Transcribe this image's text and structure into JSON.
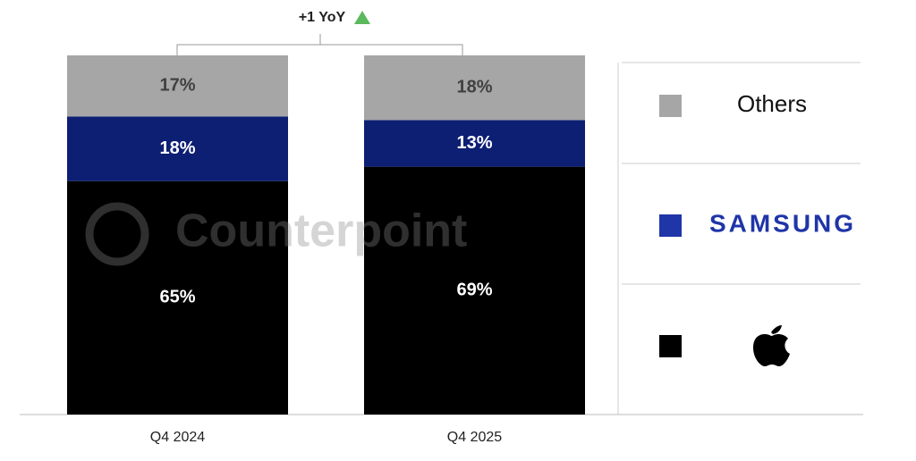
{
  "chart_data": {
    "type": "stacked_bar",
    "annotation": "+1 YoY",
    "watermark": "Counterpoint",
    "categories": [
      "Q4 2024",
      "Q4 2025"
    ],
    "ylim": [
      0,
      100
    ],
    "series": [
      {
        "color": "#000000",
        "label_color": "#ffffff",
        "values": [
          65,
          69
        ],
        "value_labels": [
          "65%",
          "69%"
        ]
      },
      {
        "name": "SAMSUNG",
        "color": "#0d1f73",
        "legend_color": "#1f35a8",
        "label_color": "#ffffff",
        "values": [
          18,
          13
        ],
        "value_labels": [
          "18%",
          "13%"
        ]
      },
      {
        "name": "Others",
        "color": "#a6a6a6",
        "label_color": "#404040",
        "values": [
          17,
          18
        ],
        "value_labels": [
          "17%",
          "18%"
        ]
      }
    ]
  }
}
